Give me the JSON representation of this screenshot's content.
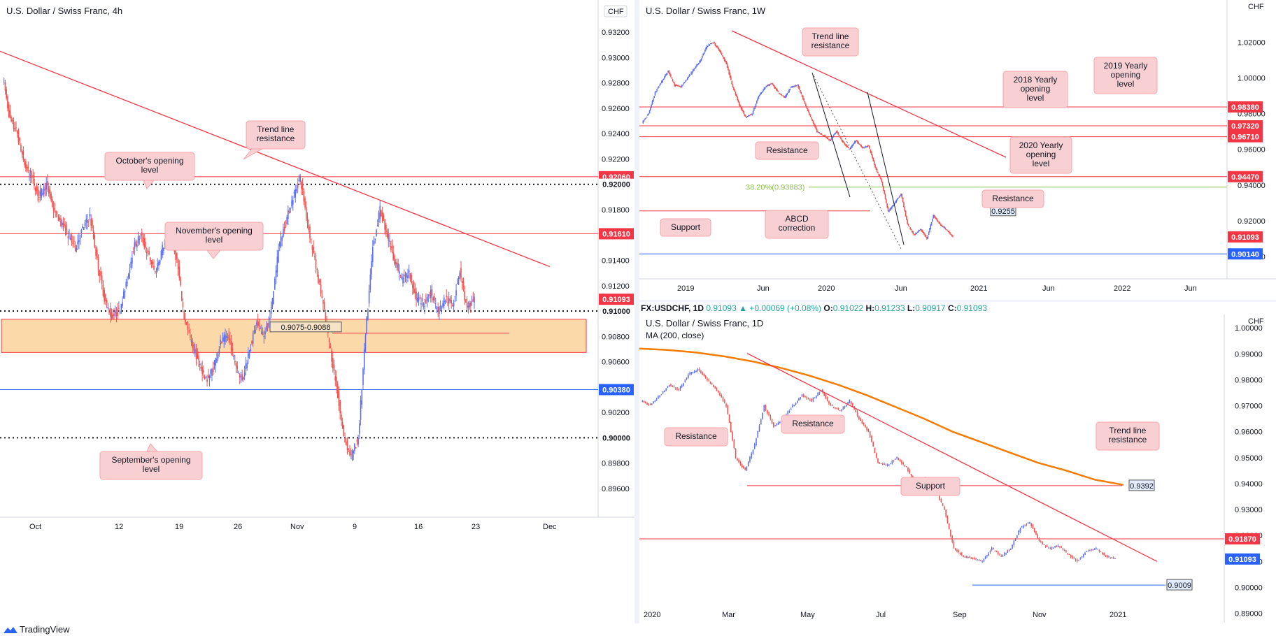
{
  "footer": {
    "brand": "TradingView"
  },
  "chart_data": [
    {
      "type": "line",
      "title": "U.S. Dollar / Swiss Franc, 4h",
      "currency": "CHF",
      "yticks": [
        "0.93200",
        "0.93000",
        "0.92800",
        "0.92600",
        "0.92400",
        "0.92200",
        "0.92000",
        "0.91800",
        "0.91600",
        "0.91400",
        "0.91200",
        "0.91000",
        "0.90800",
        "0.90600",
        "0.90400",
        "0.90200",
        "0.90000",
        "0.89800",
        "0.89600"
      ],
      "xticks": [
        "Oct",
        "12",
        "19",
        "26",
        "Nov",
        "9",
        "16",
        "23",
        "Dec"
      ],
      "ylim": [
        0.895,
        0.933
      ],
      "price_series": [
        0.9285,
        0.925,
        0.924,
        0.9215,
        0.9205,
        0.919,
        0.92,
        0.918,
        0.917,
        0.916,
        0.915,
        0.9165,
        0.9175,
        0.914,
        0.911,
        0.9095,
        0.91,
        0.912,
        0.915,
        0.916,
        0.9145,
        0.913,
        0.915,
        0.916,
        0.914,
        0.9095,
        0.9075,
        0.906,
        0.9045,
        0.9055,
        0.9075,
        0.908,
        0.906,
        0.9045,
        0.907,
        0.909,
        0.908,
        0.91,
        0.915,
        0.917,
        0.919,
        0.9205,
        0.917,
        0.914,
        0.911,
        0.9075,
        0.904,
        0.9,
        0.8985,
        0.9,
        0.908,
        0.915,
        0.918,
        0.916,
        0.914,
        0.9125,
        0.913,
        0.911,
        0.9105,
        0.9115,
        0.91,
        0.911,
        0.9105,
        0.9132,
        0.91,
        0.911
      ],
      "levels": [
        {
          "label": "0.92060",
          "value": 0.9206,
          "color": "#f23645",
          "style": "solid"
        },
        {
          "label": "0.92000",
          "value": 0.92,
          "color": "#131722",
          "style": "dotted"
        },
        {
          "label": "0.91610",
          "value": 0.9161,
          "color": "#f23645",
          "style": "solid"
        },
        {
          "label": "0.91093",
          "value": 0.91093,
          "color": "#f23645",
          "style": "price"
        },
        {
          "label": "0.91000",
          "value": 0.91,
          "color": "#131722",
          "style": "dotted"
        },
        {
          "label": "0.90380",
          "value": 0.9038,
          "color": "#2962ff",
          "style": "solid"
        },
        {
          "label": "0.90000",
          "value": 0.9,
          "color": "#131722",
          "style": "dotted"
        }
      ],
      "zone": {
        "label": "0.9075-0.9088",
        "low": 0.9075,
        "high": 0.9088
      },
      "trendline": {
        "from": 0.9305,
        "to": 0.9135
      },
      "annotations": [
        "Trend line resistance",
        "October's opening level",
        "November's opening level",
        "September's opening level"
      ]
    },
    {
      "type": "line",
      "title": "U.S. Dollar / Swiss Franc, 1W",
      "currency": "CHF",
      "yticks": [
        "1.02000",
        "1.00000",
        "0.98000",
        "0.96000",
        "0.94000",
        "0.92000",
        "0.90000"
      ],
      "xticks": [
        "2019",
        "Jun",
        "2020",
        "Jun",
        "2021",
        "Jun",
        "2022",
        "Jun"
      ],
      "ylim": [
        0.887,
        1.032
      ],
      "price_series": [
        0.975,
        0.98,
        0.992,
        0.998,
        1.004,
        0.996,
        0.995,
        1.0,
        1.005,
        1.01,
        1.018,
        1.02,
        1.015,
        1.008,
        0.995,
        0.985,
        0.978,
        0.98,
        0.99,
        0.995,
        0.997,
        0.992,
        0.989,
        0.995,
        0.996,
        0.987,
        0.978,
        0.97,
        0.968,
        0.965,
        0.97,
        0.964,
        0.96,
        0.965,
        0.961,
        0.962,
        0.95,
        0.942,
        0.925,
        0.93,
        0.935,
        0.918,
        0.912,
        0.915,
        0.91,
        0.923,
        0.918,
        0.915,
        0.9109
      ],
      "levels": [
        {
          "label": "0.98380",
          "value": 0.9838,
          "color": "#f23645",
          "style": "solid"
        },
        {
          "label": "0.97320",
          "value": 0.9732,
          "color": "#f23645",
          "style": "solid"
        },
        {
          "label": "0.96710",
          "value": 0.9671,
          "color": "#f23645",
          "style": "solid"
        },
        {
          "label": "0.94470",
          "value": 0.9447,
          "color": "#f23645",
          "style": "solid"
        },
        {
          "label": "0.91093",
          "value": 0.91093,
          "color": "#f23645",
          "style": "price"
        },
        {
          "label": "0.90140",
          "value": 0.9014,
          "color": "#2962ff",
          "style": "solid"
        }
      ],
      "resistance_tag": {
        "label": "0.9255",
        "value": 0.9255
      },
      "fib": {
        "label": "38.20%(0.93883)",
        "value": 0.93883
      },
      "annotations": [
        "Trend line resistance",
        "2018 Yearly opening level",
        "2019 Yearly opening level",
        "2020 Yearly opening level",
        "Resistance",
        "Resistance",
        "ABCD correction",
        "Support"
      ]
    },
    {
      "type": "line",
      "title": "U.S. Dollar / Swiss Franc, 1D",
      "currency": "CHF",
      "indicator": "MA (200, close)",
      "infobar": {
        "symbol": "FX:USDCHF, 1D",
        "last": "0.91093",
        "change": "▲ +0.00069 (+0.08%)",
        "o_label": "O:",
        "o": "0.91022",
        "h_label": "H:",
        "h": "0.91233",
        "l_label": "L:",
        "l": "0.90917",
        "c_label": "C:",
        "c": "0.91093"
      },
      "yticks": [
        "1.00000",
        "0.99000",
        "0.98000",
        "0.97000",
        "0.96000",
        "0.95000",
        "0.94000",
        "0.93000",
        "0.92000",
        "0.91000",
        "0.90000",
        "0.89000"
      ],
      "xticks": [
        "2020",
        "Mar",
        "May",
        "Jul",
        "Sep",
        "Nov",
        "2021"
      ],
      "ylim": [
        0.888,
        1.003
      ],
      "price_series": [
        0.972,
        0.97,
        0.974,
        0.978,
        0.976,
        0.982,
        0.984,
        0.98,
        0.976,
        0.97,
        0.95,
        0.945,
        0.955,
        0.97,
        0.962,
        0.965,
        0.97,
        0.974,
        0.972,
        0.976,
        0.97,
        0.968,
        0.972,
        0.965,
        0.96,
        0.948,
        0.947,
        0.95,
        0.946,
        0.94,
        0.942,
        0.938,
        0.93,
        0.915,
        0.912,
        0.911,
        0.91,
        0.915,
        0.912,
        0.915,
        0.923,
        0.925,
        0.918,
        0.915,
        0.916,
        0.913,
        0.91,
        0.914,
        0.915,
        0.912,
        0.9109
      ],
      "ma_series": [
        0.992,
        0.9915,
        0.9905,
        0.989,
        0.987,
        0.9845,
        0.9815,
        0.978,
        0.974,
        0.9695,
        0.965,
        0.96,
        0.956,
        0.952,
        0.948,
        0.945,
        0.9415,
        0.9395
      ],
      "levels": [
        {
          "label": "0.91870",
          "value": 0.9187,
          "color": "#f23645",
          "style": "solid"
        },
        {
          "label": "0.91093",
          "value": 0.91093,
          "color": "#2962ff",
          "style": "price"
        }
      ],
      "resistance_tag": {
        "label": "0.9392",
        "value": 0.9392
      },
      "support_tag": {
        "label": "0.9009",
        "value": 0.9009
      },
      "annotations": [
        "Resistance",
        "Resistance",
        "Support",
        "Trend line resistance"
      ]
    }
  ]
}
